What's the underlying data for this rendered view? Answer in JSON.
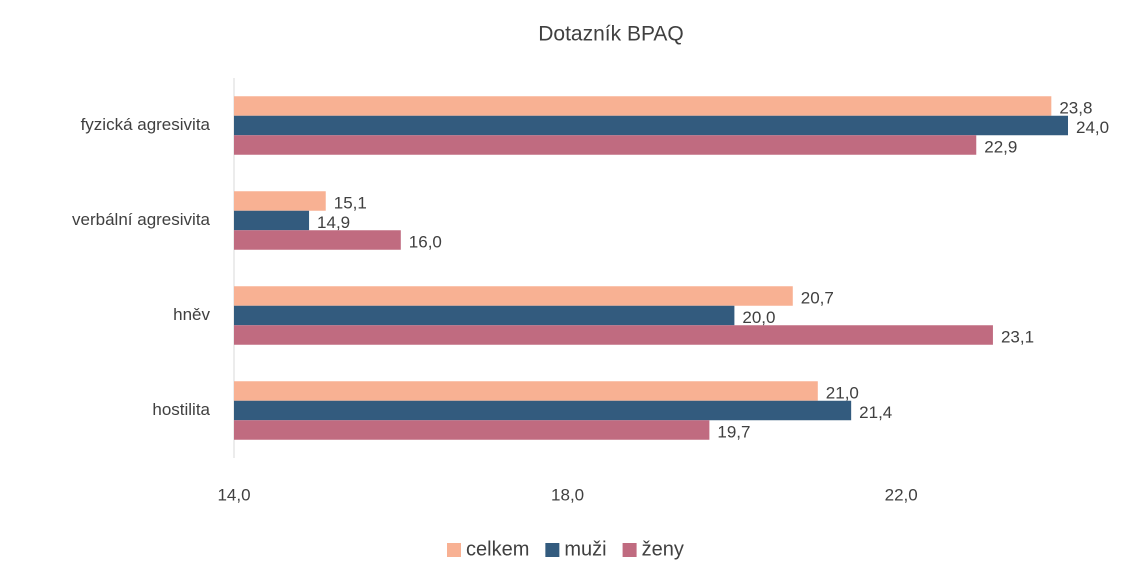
{
  "chart_data": {
    "type": "barh",
    "title": "Dotazník BPAQ",
    "categories": [
      "fyzická agresivita",
      "verbální agresivita",
      "hněv",
      "hostilita"
    ],
    "series": [
      {
        "name": "celkem",
        "color": "#f8b193",
        "values": [
          23.8,
          15.1,
          20.7,
          21.0
        ],
        "value_labels": [
          "23,8",
          "15,1",
          "20,7",
          "21,0"
        ]
      },
      {
        "name": "muži",
        "color": "#335b7e",
        "values": [
          24.0,
          14.9,
          20.0,
          21.4
        ],
        "value_labels": [
          "24,0",
          "14,9",
          "20,0",
          "21,4"
        ]
      },
      {
        "name": "ženy",
        "color": "#c06b80",
        "values": [
          22.9,
          16.0,
          23.1,
          19.7
        ],
        "value_labels": [
          "22,9",
          "16,0",
          "23,1",
          "19,7"
        ]
      }
    ],
    "xlim": [
      14,
      24
    ],
    "xticks": [
      {
        "value": 14,
        "label": "14,0"
      },
      {
        "value": 18,
        "label": "18,0"
      },
      {
        "value": 22,
        "label": "22,0"
      }
    ],
    "legend": "bottom"
  }
}
